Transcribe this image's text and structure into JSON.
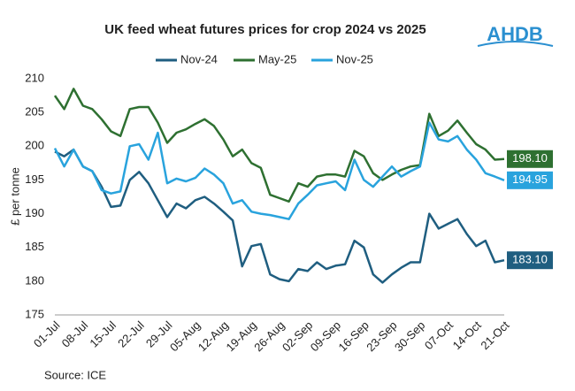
{
  "chart_data": {
    "type": "line",
    "title": "UK feed wheat futures prices for crop 2024 vs 2025",
    "logo": "AHDB",
    "y_label": "£ per tonne",
    "source": "Source: ICE",
    "categories": [
      "01-Jul",
      null,
      null,
      "08-Jul",
      null,
      null,
      "15-Jul",
      null,
      null,
      "22-Jul",
      null,
      null,
      "29-Jul",
      null,
      null,
      "05-Aug",
      null,
      null,
      "12-Aug",
      null,
      null,
      "19-Aug",
      null,
      null,
      "26-Aug",
      null,
      null,
      "02-Sep",
      null,
      null,
      "09-Sep",
      null,
      null,
      "16-Sep",
      null,
      null,
      "23-Sep",
      null,
      null,
      "30-Sep",
      null,
      null,
      "07-Oct",
      null,
      null,
      "14-Oct",
      null,
      null,
      "21-Oct"
    ],
    "series": [
      {
        "name": "Nov-24",
        "color": "#1f5e80",
        "values": [
          199.2,
          198.5,
          199.5,
          197.0,
          196.3,
          194.0,
          191.0,
          191.2,
          195.0,
          196.2,
          194.5,
          192.0,
          189.5,
          191.5,
          190.8,
          192.0,
          192.5,
          191.5,
          190.3,
          189.0,
          182.2,
          185.2,
          185.5,
          181.0,
          180.3,
          180.0,
          181.8,
          181.5,
          182.8,
          181.8,
          182.3,
          182.5,
          186.0,
          185.0,
          181.0,
          179.8,
          181.0,
          182.0,
          182.8,
          182.8,
          190.0,
          187.8,
          188.5,
          189.2,
          187.0,
          185.2,
          186.0,
          182.8,
          183.1
        ],
        "value_labels": [
          null,
          null,
          null,
          null,
          null,
          null,
          null,
          null,
          null,
          null,
          null,
          null,
          null,
          null,
          null,
          null,
          null,
          null,
          null,
          null,
          null,
          null,
          null,
          null,
          null,
          null,
          null,
          null,
          null,
          null,
          null,
          null,
          null,
          null,
          null,
          null,
          null,
          null,
          null,
          null,
          null,
          null,
          null,
          null,
          null,
          null,
          null,
          null,
          "183.10"
        ]
      },
      {
        "name": "May-25",
        "color": "#2e7031",
        "values": [
          207.5,
          205.5,
          208.5,
          206.0,
          205.5,
          204.0,
          202.2,
          201.5,
          205.5,
          205.8,
          205.8,
          203.5,
          200.5,
          202.0,
          202.5,
          203.3,
          204.0,
          203.0,
          201.0,
          198.5,
          199.5,
          197.5,
          196.8,
          192.8,
          192.3,
          191.8,
          194.5,
          194.0,
          195.5,
          195.8,
          195.8,
          195.5,
          199.3,
          198.5,
          196.0,
          195.0,
          195.8,
          196.5,
          197.0,
          197.2,
          204.8,
          201.5,
          202.3,
          203.8,
          202.0,
          200.3,
          199.5,
          198.0,
          198.1
        ],
        "value_labels": [
          null,
          null,
          null,
          null,
          null,
          null,
          null,
          null,
          null,
          null,
          null,
          null,
          null,
          null,
          null,
          null,
          null,
          null,
          null,
          null,
          null,
          null,
          null,
          null,
          null,
          null,
          null,
          null,
          null,
          null,
          null,
          null,
          null,
          null,
          null,
          null,
          null,
          null,
          null,
          null,
          null,
          null,
          null,
          null,
          null,
          null,
          null,
          null,
          "198.10"
        ]
      },
      {
        "name": "Nov-25",
        "color": "#29a3dd",
        "values": [
          199.7,
          197.0,
          199.5,
          197.0,
          196.3,
          193.5,
          193.0,
          193.3,
          200.0,
          200.3,
          198.0,
          202.0,
          194.5,
          195.2,
          194.8,
          195.3,
          196.7,
          195.8,
          194.5,
          191.5,
          192.0,
          190.3,
          190.0,
          189.8,
          189.5,
          189.2,
          191.5,
          192.8,
          194.2,
          194.5,
          194.8,
          193.5,
          198.0,
          195.0,
          194.0,
          195.5,
          197.0,
          195.5,
          196.3,
          197.0,
          203.5,
          201.0,
          200.7,
          201.5,
          199.5,
          198.0,
          196.0,
          195.5,
          194.95
        ],
        "value_labels": [
          null,
          null,
          null,
          null,
          null,
          null,
          null,
          null,
          null,
          null,
          null,
          null,
          null,
          null,
          null,
          null,
          null,
          null,
          null,
          null,
          null,
          null,
          null,
          null,
          null,
          null,
          null,
          null,
          null,
          null,
          null,
          null,
          null,
          null,
          null,
          null,
          null,
          null,
          null,
          null,
          null,
          null,
          null,
          null,
          null,
          null,
          null,
          null,
          "194.95"
        ]
      }
    ],
    "ylim": [
      175,
      210
    ],
    "yticks": [
      175,
      180,
      185,
      190,
      195,
      200,
      205,
      210
    ],
    "grid": false
  }
}
